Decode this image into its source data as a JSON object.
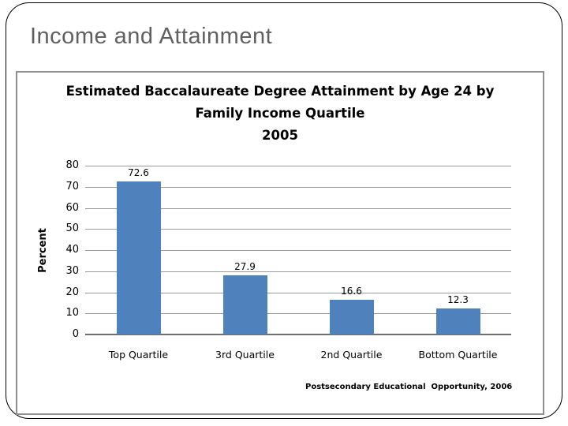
{
  "slide": {
    "title": "Income and Attainment"
  },
  "chart_data": {
    "type": "bar",
    "title_lines": [
      "Estimated Baccalaureate Degree Attainment by Age 24 by",
      "Family Income Quartile",
      "2005"
    ],
    "categories": [
      "Top Quartile",
      "3rd Quartile",
      "2nd Quartile",
      "Bottom Quartile"
    ],
    "values": [
      72.6,
      27.9,
      16.6,
      12.3
    ],
    "data_labels": [
      "72.6",
      "27.9",
      "16.6",
      "12.3"
    ],
    "xlabel": "",
    "ylabel": "Percent",
    "ylim": [
      0,
      80
    ],
    "ytick_step": 10,
    "grid": true,
    "legend": "none",
    "bar_color": "#4F81BD",
    "source": "Postsecondary Educational  Opportunity, 2006"
  }
}
